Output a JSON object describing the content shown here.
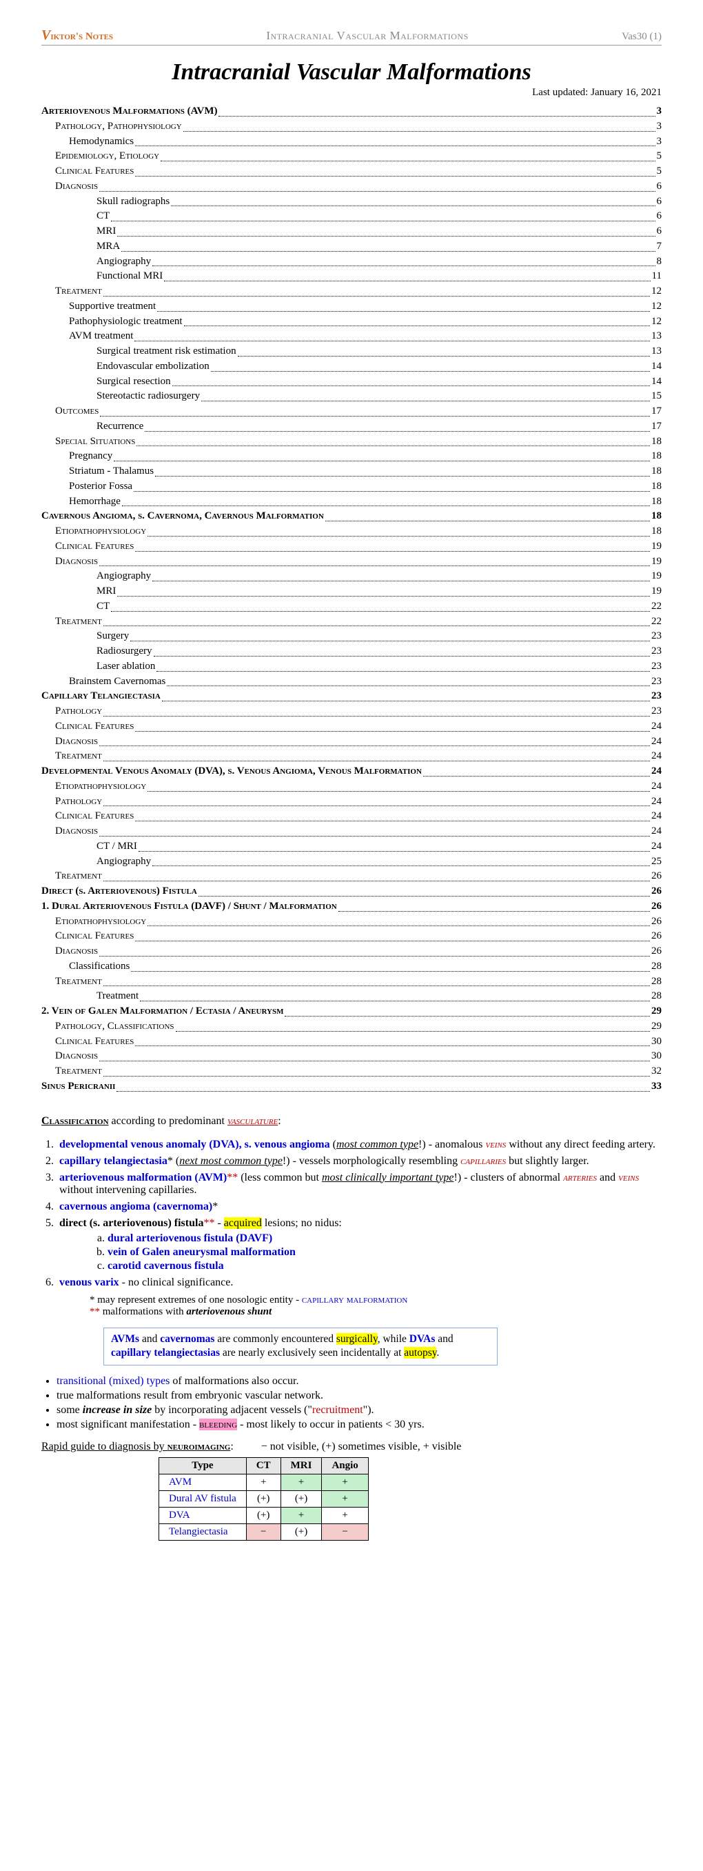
{
  "header": {
    "logo_text": "iktor's Notes",
    "center": "Intracranial Vascular Malformations",
    "right": "Vas30 (1)"
  },
  "title": "Intracranial Vascular Malformations",
  "updated": "Last updated: January 16, 2021",
  "toc": [
    {
      "label": "Arteriovenous Malformations (AVM)",
      "page": "3",
      "level": 0
    },
    {
      "label": "Pathology, Pathophysiology",
      "page": "3",
      "level": 1
    },
    {
      "label": "Hemodynamics",
      "page": "3",
      "level": 2
    },
    {
      "label": "Epidemiology, Etiology",
      "page": "5",
      "level": 1
    },
    {
      "label": "Clinical Features",
      "page": "5",
      "level": 1
    },
    {
      "label": "Diagnosis",
      "page": "6",
      "level": 1
    },
    {
      "label": "Skull radiographs",
      "page": "6",
      "level": 3
    },
    {
      "label": "CT",
      "page": "6",
      "level": 3
    },
    {
      "label": "MRI",
      "page": "6",
      "level": 3
    },
    {
      "label": "MRA",
      "page": "7",
      "level": 3
    },
    {
      "label": "Angiography",
      "page": "8",
      "level": 3
    },
    {
      "label": "Functional MRI",
      "page": "11",
      "level": 3
    },
    {
      "label": "Treatment",
      "page": "12",
      "level": 1
    },
    {
      "label": "Supportive treatment",
      "page": "12",
      "level": 2
    },
    {
      "label": "Pathophysiologic treatment",
      "page": "12",
      "level": 2
    },
    {
      "label": "AVM treatment",
      "page": "13",
      "level": 2
    },
    {
      "label": "Surgical treatment risk estimation",
      "page": "13",
      "level": 3
    },
    {
      "label": "Endovascular embolization",
      "page": "14",
      "level": 3
    },
    {
      "label": "Surgical resection",
      "page": "14",
      "level": 3
    },
    {
      "label": "Stereotactic radiosurgery",
      "page": "15",
      "level": 3
    },
    {
      "label": "Outcomes",
      "page": "17",
      "level": 1
    },
    {
      "label": "Recurrence",
      "page": "17",
      "level": 3
    },
    {
      "label": "Special Situations",
      "page": "18",
      "level": 1
    },
    {
      "label": "Pregnancy",
      "page": "18",
      "level": 2
    },
    {
      "label": "Striatum - Thalamus",
      "page": "18",
      "level": 2
    },
    {
      "label": "Posterior Fossa",
      "page": "18",
      "level": 2
    },
    {
      "label": "Hemorrhage",
      "page": "18",
      "level": 2
    },
    {
      "label": "Cavernous Angioma, s. Cavernoma, Cavernous Malformation",
      "page": "18",
      "level": 0
    },
    {
      "label": "Etiopathophysiology",
      "page": "18",
      "level": 1
    },
    {
      "label": "Clinical Features",
      "page": "19",
      "level": 1
    },
    {
      "label": "Diagnosis",
      "page": "19",
      "level": 1
    },
    {
      "label": "Angiography",
      "page": "19",
      "level": 3
    },
    {
      "label": "MRI",
      "page": "19",
      "level": 3
    },
    {
      "label": "CT",
      "page": "22",
      "level": 3
    },
    {
      "label": "Treatment",
      "page": "22",
      "level": 1
    },
    {
      "label": "Surgery",
      "page": "23",
      "level": 3
    },
    {
      "label": "Radiosurgery",
      "page": "23",
      "level": 3
    },
    {
      "label": "Laser ablation",
      "page": "23",
      "level": 3
    },
    {
      "label": "Brainstem Cavernomas",
      "page": "23",
      "level": 2
    },
    {
      "label": "Capillary Telangiectasia",
      "page": "23",
      "level": 0
    },
    {
      "label": "Pathology",
      "page": "23",
      "level": 1
    },
    {
      "label": "Clinical Features",
      "page": "24",
      "level": 1
    },
    {
      "label": "Diagnosis",
      "page": "24",
      "level": 1
    },
    {
      "label": "Treatment",
      "page": "24",
      "level": 1
    },
    {
      "label": "Developmental Venous Anomaly (DVA), s. Venous Angioma, Venous Malformation",
      "page": "24",
      "level": 0
    },
    {
      "label": "Etiopathophysiology",
      "page": "24",
      "level": 1
    },
    {
      "label": "Pathology",
      "page": "24",
      "level": 1
    },
    {
      "label": "Clinical Features",
      "page": "24",
      "level": 1
    },
    {
      "label": "Diagnosis",
      "page": "24",
      "level": 1
    },
    {
      "label": "CT / MRI",
      "page": "24",
      "level": 3
    },
    {
      "label": "Angiography",
      "page": "25",
      "level": 3
    },
    {
      "label": "Treatment",
      "page": "26",
      "level": 1
    },
    {
      "label": "Direct (s. Arteriovenous) Fistula",
      "page": "26",
      "level": 0
    },
    {
      "label": "1. Dural Arteriovenous Fistula (DAVF) / Shunt / Malformation",
      "page": "26",
      "level": 0
    },
    {
      "label": "Etiopathophysiology",
      "page": "26",
      "level": 1
    },
    {
      "label": "Clinical Features",
      "page": "26",
      "level": 1
    },
    {
      "label": "Diagnosis",
      "page": "26",
      "level": 1
    },
    {
      "label": "Classifications",
      "page": "28",
      "level": 2
    },
    {
      "label": "Treatment",
      "page": "28",
      "level": 1
    },
    {
      "label": "Treatment",
      "page": "28",
      "level": 3
    },
    {
      "label": "2. Vein of Galen Malformation / Ectasia / Aneurysm",
      "page": "29",
      "level": 0
    },
    {
      "label": "Pathology, Classifications",
      "page": "29",
      "level": 1
    },
    {
      "label": "Clinical Features",
      "page": "30",
      "level": 1
    },
    {
      "label": "Diagnosis",
      "page": "30",
      "level": 1
    },
    {
      "label": "Treatment",
      "page": "32",
      "level": 1
    },
    {
      "label": "Sinus Pericranii",
      "page": "33",
      "level": 0
    }
  ],
  "classif_head_a": "Classification",
  "classif_head_b": " according to predominant ",
  "classif_head_c": "vasculature",
  "list": {
    "i1a": "developmental venous anomaly (DVA), s. venous angioma",
    "i1b": " (",
    "i1c": "most common type",
    "i1d": "!) - anomalous ",
    "i1e": "veins",
    "i1f": " without any direct feeding artery.",
    "i2a": "capillary telangiectasia",
    "i2b": "* (",
    "i2c": "next most common type",
    "i2d": "!) - vessels morphologically resembling ",
    "i2e": "capillaries",
    "i2f": " but slightly larger.",
    "i3a": "arteriovenous malformation (AVM)",
    "i3b": "**",
    "i3c": " (less common but ",
    "i3d": "most clinically important type",
    "i3e": "!) - clusters of abnormal ",
    "i3f": "arteries",
    "i3g": " and ",
    "i3h": "veins",
    "i3i": " without intervening capillaries.",
    "i4a": "cavernous angioma (cavernoma)",
    "i4b": "*",
    "i5a": "direct (s. arteriovenous) fistula",
    "i5b": "**",
    "i5c": " - ",
    "i5d": "acquired",
    "i5e": " lesions; no nidus:",
    "sa": "dural arteriovenous fistula (DAVF)",
    "sb": "vein of Galen aneurysmal malformation",
    "sc": "carotid cavernous fistula",
    "i6a": "venous varix",
    "i6b": " - no clinical significance."
  },
  "notes": {
    "n1a": "* may represent extremes of one nosologic entity - ",
    "n1b": "capillary malformation",
    "n2a": "**",
    "n2b": " malformations with ",
    "n2c": "arteriovenous shunt"
  },
  "box": {
    "l1a": "AVMs",
    "l1b": " and ",
    "l1c": "cavernomas",
    "l1d": " are commonly encountered ",
    "l1e": "surgically",
    "l1f": ", while ",
    "l1g": "DVAs",
    "l1h": " and ",
    "l1i": "capillary telangiectasias",
    "l1j": " are nearly exclusively seen incidentally at ",
    "l1k": "autopsy",
    "l1l": "."
  },
  "bullets": {
    "b1a": "transitional (mixed) types",
    "b1b": " of malformations also occur.",
    "b2": "true malformations result from embryonic vascular network.",
    "b3a": "some ",
    "b3b": "increase in size",
    "b3c": " by incorporating adjacent vessels (\"",
    "b3d": "recruitment",
    "b3e": "\").",
    "b4a": "most significant manifestation - ",
    "b4b": "bleeding",
    "b4c": " - most likely to occur in patients < 30 yrs."
  },
  "rapid": {
    "label_a": "Rapid guide to diagnosis by ",
    "label_b": "neuroimaging",
    "label_c": ":",
    "legend": "− not visible, (+) sometimes visible, + visible"
  },
  "table": {
    "headers": [
      "Type",
      "CT",
      "MRI",
      "Angio"
    ],
    "rows": [
      {
        "type": "AVM",
        "ct": {
          "v": "+",
          "c": ""
        },
        "mri": {
          "v": "+",
          "c": "cell-green"
        },
        "angio": {
          "v": "+",
          "c": "cell-green"
        }
      },
      {
        "type": "Dural AV fistula",
        "ct": {
          "v": "(+)",
          "c": ""
        },
        "mri": {
          "v": "(+)",
          "c": ""
        },
        "angio": {
          "v": "+",
          "c": "cell-green"
        }
      },
      {
        "type": "DVA",
        "ct": {
          "v": "(+)",
          "c": ""
        },
        "mri": {
          "v": "+",
          "c": "cell-green"
        },
        "angio": {
          "v": "+",
          "c": ""
        }
      },
      {
        "type": "Telangiectasia",
        "ct": {
          "v": "−",
          "c": "cell-pink"
        },
        "mri": {
          "v": "(+)",
          "c": ""
        },
        "angio": {
          "v": "−",
          "c": "cell-pink"
        }
      }
    ]
  }
}
